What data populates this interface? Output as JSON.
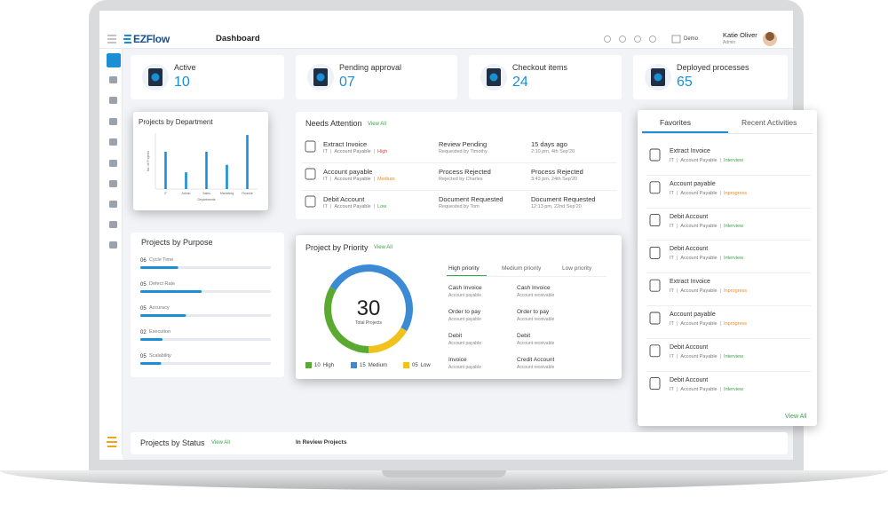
{
  "separator": "|",
  "header": {
    "logo": "EZFlow",
    "title": "Dashboard",
    "workspace": "Demo",
    "user_name": "Katie Oliver",
    "user_role": "Admin"
  },
  "stats": [
    {
      "label": "Active",
      "value": "10"
    },
    {
      "label": "Pending approval",
      "value": "07"
    },
    {
      "label": "Checkout items",
      "value": "24"
    },
    {
      "label": "Deployed processes",
      "value": "65"
    }
  ],
  "department_chart": {
    "type": "bar",
    "title": "Projects by Department",
    "y_label": "No. of Projects",
    "x_label": "Departments",
    "categories": [
      "IT",
      "Admin",
      "Sales",
      "Marketing",
      "Finance"
    ],
    "values": [
      40,
      18,
      40,
      26,
      58
    ],
    "ylim": [
      0,
      60
    ],
    "color": "#1a8fd6"
  },
  "needs_attention": {
    "title": "Needs Attention",
    "view_all": "View All",
    "rows": [
      {
        "name": "Extract Invoice",
        "dept": "IT",
        "category": "Account Payable",
        "priority": "High",
        "priority_color": "#e0453a",
        "status": "Review Pending",
        "actor": "Requested by Timothy",
        "time": "15 days ago",
        "date": "2:10 pm, 4th Sep'20"
      },
      {
        "name": "Account payable",
        "dept": "IT",
        "category": "Account Payable",
        "priority": "Medium",
        "priority_color": "#f08a1c",
        "status": "Process Rejected",
        "actor": "Rejected by Charles",
        "time": "Process Rejected",
        "date": "3:43 pm, 24th Sep'20"
      },
      {
        "name": "Debit Account",
        "dept": "IT",
        "category": "Account Payable",
        "priority": "Low",
        "priority_color": "#3aa44a",
        "status": "Document Requested",
        "actor": "Requested by Tom",
        "time": "Document Requested",
        "date": "12:13 pm, 22nd Sep'20"
      }
    ]
  },
  "purpose": {
    "title": "Projects by Purpose",
    "color": "#1a8fd6",
    "items": [
      {
        "count": "06",
        "label": "Cycle Time",
        "progress": 29
      },
      {
        "count": "05",
        "label": "Defect Rate",
        "progress": 47
      },
      {
        "count": "05",
        "label": "Accuracy",
        "progress": 35
      },
      {
        "count": "02",
        "label": "Execution",
        "progress": 17
      },
      {
        "count": "05",
        "label": "Scalability",
        "progress": 16
      }
    ]
  },
  "priority": {
    "title": "Project by Priority",
    "view_all": "View All",
    "total": "30",
    "total_label": "Total Projects",
    "segments": [
      {
        "label": "High",
        "value": 10,
        "value_label": "10",
        "color": "#5aaa32"
      },
      {
        "label": "Medium",
        "value": 15,
        "value_label": "15",
        "color": "#3a8ad6"
      },
      {
        "label": "Low",
        "value": 5,
        "value_label": "05",
        "color": "#f2c21b"
      }
    ],
    "tabs": [
      "High priority",
      "Medium priority",
      "Low priority"
    ],
    "items": [
      {
        "name": "Cash Invoice",
        "type": "Account payable"
      },
      {
        "name": "Cash Invoice",
        "type": "Account receivable"
      },
      {
        "name": "Order to pay",
        "type": "Account payable"
      },
      {
        "name": "Order to pay",
        "type": "Account receivable"
      },
      {
        "name": "Debit",
        "type": "Account payable"
      },
      {
        "name": "Debit",
        "type": "Account receivable"
      },
      {
        "name": "Invoice",
        "type": "Account payable"
      },
      {
        "name": "Credit Account",
        "type": "Account receivable"
      }
    ]
  },
  "favorites": {
    "tabs": [
      "Favorites",
      "Recent Activities"
    ],
    "view_all": "View All",
    "items": [
      {
        "name": "Extract Invoice",
        "dept": "IT",
        "category": "Account Payable",
        "stage": "Interview",
        "stage_color": "#3aa44a"
      },
      {
        "name": "Account payable",
        "dept": "IT",
        "category": "Account Payable",
        "stage": "Inprogress",
        "stage_color": "#f08a1c"
      },
      {
        "name": "Debit Account",
        "dept": "IT",
        "category": "Account Payable",
        "stage": "Interview",
        "stage_color": "#3aa44a"
      },
      {
        "name": "Debit Account",
        "dept": "IT",
        "category": "Account Payable",
        "stage": "Interview",
        "stage_color": "#3aa44a"
      },
      {
        "name": "Extract Invoice",
        "dept": "IT",
        "category": "Account Payable",
        "stage": "Inprogress",
        "stage_color": "#f08a1c"
      },
      {
        "name": "Account payable",
        "dept": "IT",
        "category": "Account Payable",
        "stage": "Inprogress",
        "stage_color": "#f08a1c"
      },
      {
        "name": "Debit Account",
        "dept": "IT",
        "category": "Account Payable",
        "stage": "Interview",
        "stage_color": "#3aa44a"
      },
      {
        "name": "Debit Account",
        "dept": "IT",
        "category": "Account Payable",
        "stage": "Interview",
        "stage_color": "#3aa44a"
      }
    ]
  },
  "status": {
    "title": "Projects by Status",
    "view_all": "View All",
    "in_review": "In Review Projects"
  }
}
